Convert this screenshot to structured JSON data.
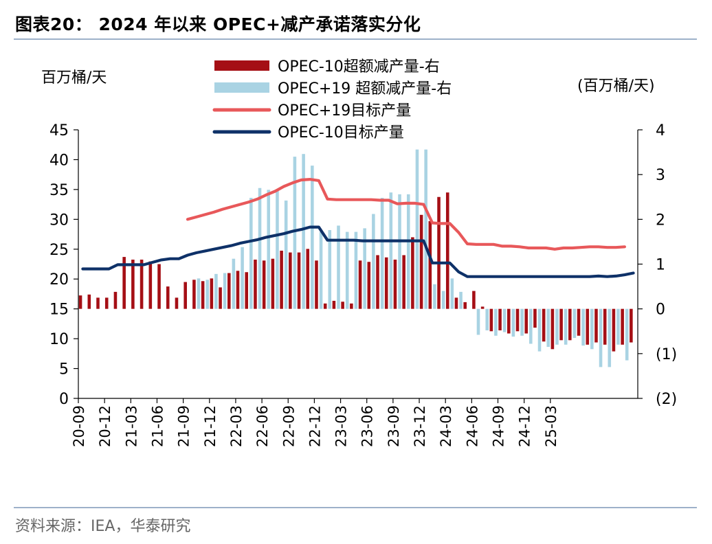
{
  "header": {
    "title": "图表20： 2024 年以来 OPEC+减产承诺落实分化",
    "unit_left": "百万桶/天",
    "unit_right": "(百万桶/天)"
  },
  "footer": {
    "source": "资料来源：IEA，华泰研究"
  },
  "chart_data": {
    "type": "bar",
    "x_tick_labels": [
      "20-09",
      "20-12",
      "21-03",
      "21-06",
      "21-09",
      "21-12",
      "22-03",
      "22-06",
      "22-09",
      "22-12",
      "23-03",
      "23-06",
      "23-09",
      "23-12",
      "24-03",
      "24-06",
      "24-09",
      "24-12",
      "25-03"
    ],
    "y_left": {
      "range": [
        0,
        45
      ],
      "ticks": [
        "0",
        "5",
        "10",
        "15",
        "20",
        "25",
        "30",
        "35",
        "40",
        "45"
      ]
    },
    "y_right": {
      "range": [
        -2,
        4
      ],
      "ticks": [
        "(2)",
        "(1)",
        "0",
        "1",
        "2",
        "3",
        "4"
      ]
    },
    "legend": [
      "OPEC-10超额减产量-右",
      "OPEC+19 超额减产量-右",
      "OPEC+19目标产量",
      "OPEC-10目标产量"
    ],
    "colors": {
      "opec10_bar": "#a50f15",
      "opec19_bar": "#a9d3e3",
      "opec19_line": "#e8585a",
      "opec10_line": "#0e3168"
    },
    "series": [
      {
        "name": "OPEC-10超额减产量-右",
        "type": "bar",
        "axis": "right",
        "values": [
          0.3,
          0.32,
          0.25,
          0.25,
          0.38,
          1.16,
          1.1,
          1.1,
          1.06,
          1.0,
          0.5,
          0.25,
          0.6,
          0.65,
          0.62,
          0.68,
          0.48,
          0.8,
          0.85,
          0.82,
          1.1,
          1.08,
          1.12,
          1.3,
          1.26,
          1.26,
          1.34,
          1.08,
          0.12,
          0.18,
          0.16,
          0.12,
          1.08,
          1.05,
          1.2,
          1.15,
          1.1,
          1.2,
          1.6,
          2.1,
          1.96,
          2.5,
          2.6,
          0.25,
          0.15,
          0.4,
          0.05,
          -0.5,
          -0.48,
          -0.55,
          -0.5,
          -0.55,
          -0.42,
          -0.73,
          -0.9,
          -0.7,
          -0.7,
          -0.6,
          -0.8,
          -0.75,
          -0.8,
          -0.95,
          -0.8,
          -0.75
        ]
      },
      {
        "name": "OPEC+19 超额减产量-右",
        "type": "bar",
        "axis": "right",
        "values": [
          0.0,
          0.0,
          0.0,
          0.0,
          0.0,
          0.0,
          0.0,
          0.0,
          0.0,
          0.0,
          0.0,
          0.0,
          0.0,
          0.68,
          0.65,
          0.78,
          0.8,
          1.12,
          1.38,
          2.48,
          2.7,
          2.66,
          2.66,
          2.42,
          3.4,
          3.46,
          3.2,
          1.72,
          1.76,
          1.86,
          1.72,
          1.72,
          1.8,
          2.12,
          2.48,
          2.6,
          2.56,
          2.56,
          3.56,
          3.56,
          0.55,
          0.4,
          0.68,
          0.38,
          0.0,
          -0.58,
          -0.48,
          -0.6,
          -0.52,
          -0.62,
          -0.6,
          -0.78,
          -0.95,
          -0.85,
          -0.8,
          -0.8,
          -0.65,
          -0.82,
          -0.9,
          -1.3,
          -1.3,
          -0.8,
          -1.15,
          0.0
        ]
      },
      {
        "name": "OPEC+19目标产量",
        "type": "line",
        "axis": "left",
        "start_index": 12,
        "values": [
          30.0,
          30.4,
          30.8,
          31.2,
          31.7,
          32.1,
          32.5,
          32.9,
          33.4,
          34.1,
          34.7,
          35.5,
          36.1,
          36.6,
          36.7,
          36.5,
          33.4,
          33.3,
          33.3,
          33.3,
          33.3,
          33.3,
          33.2,
          33.2,
          32.6,
          32.7,
          32.7,
          32.5,
          29.4,
          29.3,
          29.3,
          27.8,
          25.9,
          25.8,
          25.8,
          25.8,
          25.5,
          25.5,
          25.4,
          25.2,
          25.2,
          25.2,
          25.0,
          25.2,
          25.2,
          25.3,
          25.4,
          25.4,
          25.3,
          25.3,
          25.4
        ]
      },
      {
        "name": "OPEC-10目标产量",
        "type": "line",
        "axis": "left",
        "start_index": 0,
        "values": [
          21.7,
          21.7,
          21.7,
          21.7,
          22.4,
          22.4,
          22.4,
          22.4,
          22.8,
          23.2,
          23.4,
          23.4,
          24.0,
          24.4,
          24.7,
          25.0,
          25.3,
          25.6,
          26.0,
          26.3,
          26.6,
          27.0,
          27.3,
          27.6,
          28.0,
          28.3,
          28.7,
          28.7,
          26.5,
          26.5,
          26.5,
          26.5,
          26.4,
          26.4,
          26.4,
          26.4,
          26.4,
          26.4,
          26.4,
          26.4,
          22.7,
          22.7,
          22.7,
          21.2,
          20.4,
          20.4,
          20.4,
          20.4,
          20.4,
          20.4,
          20.4,
          20.4,
          20.4,
          20.4,
          20.4,
          20.4,
          20.4,
          20.4,
          20.4,
          20.5,
          20.4,
          20.5,
          20.7,
          21.0
        ]
      }
    ]
  }
}
